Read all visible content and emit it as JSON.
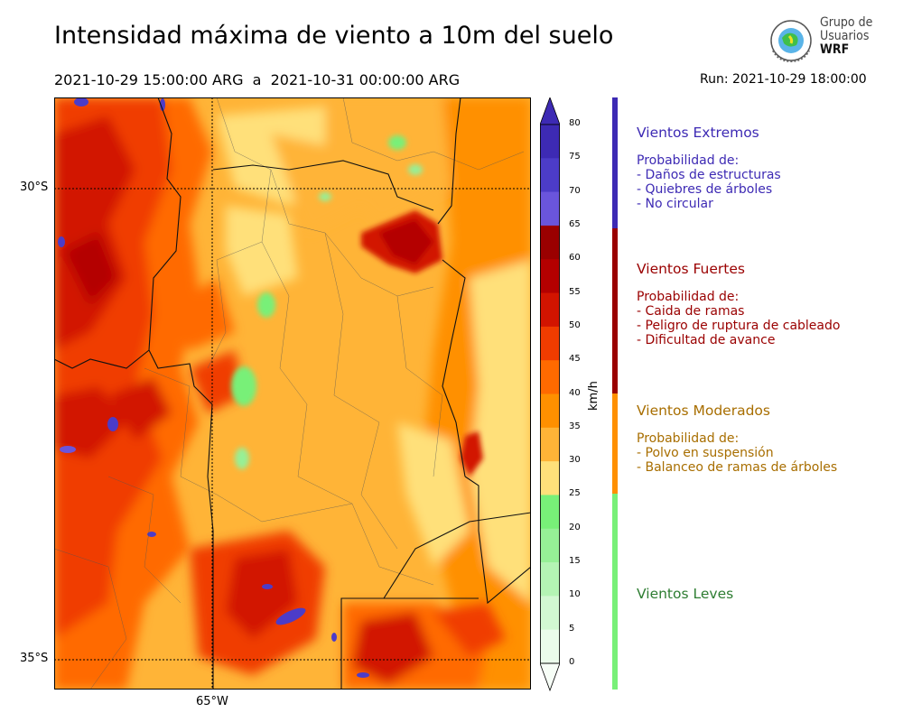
{
  "title": "Intensidad máxima de viento a 10m del suelo",
  "period": "2021-10-29 15:00:00 ARG  a  2021-10-31 00:00:00 ARG",
  "run": "Run: 2021-10-29 18:00:00",
  "logo": {
    "line1": "Grupo de",
    "line2": "Usuarios",
    "line3": "WRF",
    "icon": "globe-emblem-icon"
  },
  "map": {
    "lat_labels": [
      "30°S",
      "35°S"
    ],
    "lon_labels": [
      "65°W"
    ],
    "background_color": "#ffb437"
  },
  "colorbar": {
    "unit": "km/h",
    "ticks": [
      "80",
      "75",
      "70",
      "65",
      "60",
      "55",
      "50",
      "45",
      "40",
      "35",
      "30",
      "25",
      "20",
      "15",
      "10",
      "5",
      "0"
    ],
    "colors": [
      "#3d2ab4",
      "#4c3cc8",
      "#6a55dc",
      "#9a0000",
      "#b40000",
      "#d21400",
      "#f03c00",
      "#ff6a00",
      "#ff9000",
      "#ffb437",
      "#ffe07a",
      "#78f078",
      "#96f096",
      "#b4f4b4",
      "#d2f8d2",
      "#ebfceb"
    ]
  },
  "categories": [
    {
      "name": "Vientos Extremos",
      "color": "#3d2ab4",
      "lines": [
        "Probabilidad de:",
        "- Daños de estructuras",
        "- Quiebres de árboles",
        "- No circular"
      ]
    },
    {
      "name": "Vientos Fuertes",
      "color": "#9a0000",
      "lines": [
        "Probabilidad de:",
        "- Caida de ramas",
        "- Peligro de ruptura de cableado",
        "- Dificultad de avance"
      ]
    },
    {
      "name": "Vientos Moderados",
      "color": "#a86e00",
      "lines": [
        "Probabilidad de:",
        "- Polvo en suspensión",
        "- Balanceo de ramas de árboles"
      ]
    },
    {
      "name": "Vientos Leves",
      "color": "#2e7d32",
      "lines": []
    }
  ]
}
